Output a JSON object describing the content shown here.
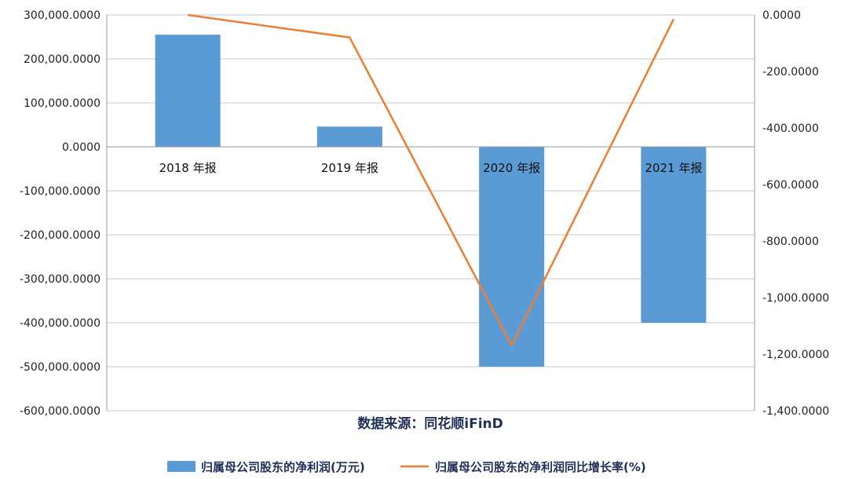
{
  "chart_data": {
    "type": "bar",
    "categories": [
      "2018 年报",
      "2019 年报",
      "2020 年报",
      "2021 年报"
    ],
    "series": [
      {
        "name": "归属母公司股东的净利润(万元)",
        "type": "bar",
        "axis": "left",
        "color": "#5b9bd5",
        "values": [
          255000,
          46000,
          -500000,
          -400000
        ]
      },
      {
        "name": "归属母公司股东的净利润同比增长率(%)",
        "type": "line",
        "axis": "right",
        "color": "#ed7d31",
        "values": [
          0,
          -80,
          -1170,
          -15
        ]
      }
    ],
    "left_axis": {
      "ylim": [
        -600000,
        300000
      ],
      "ticks": [
        300000,
        200000,
        100000,
        0,
        -100000,
        -200000,
        -300000,
        -400000,
        -500000,
        -600000
      ],
      "tick_labels": [
        "300,000.0000",
        "200,000.0000",
        "100,000.0000",
        "0.0000",
        "-100,000.0000",
        "-200,000.0000",
        "-300,000.0000",
        "-400,000.0000",
        "-500,000.0000",
        "-600,000.0000"
      ]
    },
    "right_axis": {
      "ylim": [
        -1400,
        0
      ],
      "ticks": [
        0,
        -200,
        -400,
        -600,
        -800,
        -1000,
        -1200,
        -1400
      ],
      "tick_labels": [
        "0.0000",
        "-200.0000",
        "-400.0000",
        "-600.0000",
        "-800.0000",
        "-1,000.0000",
        "-1,200.0000",
        "-1,400.0000"
      ]
    },
    "grid": true,
    "legend": "bottom",
    "source": "数据来源：同花顺iFinD"
  }
}
